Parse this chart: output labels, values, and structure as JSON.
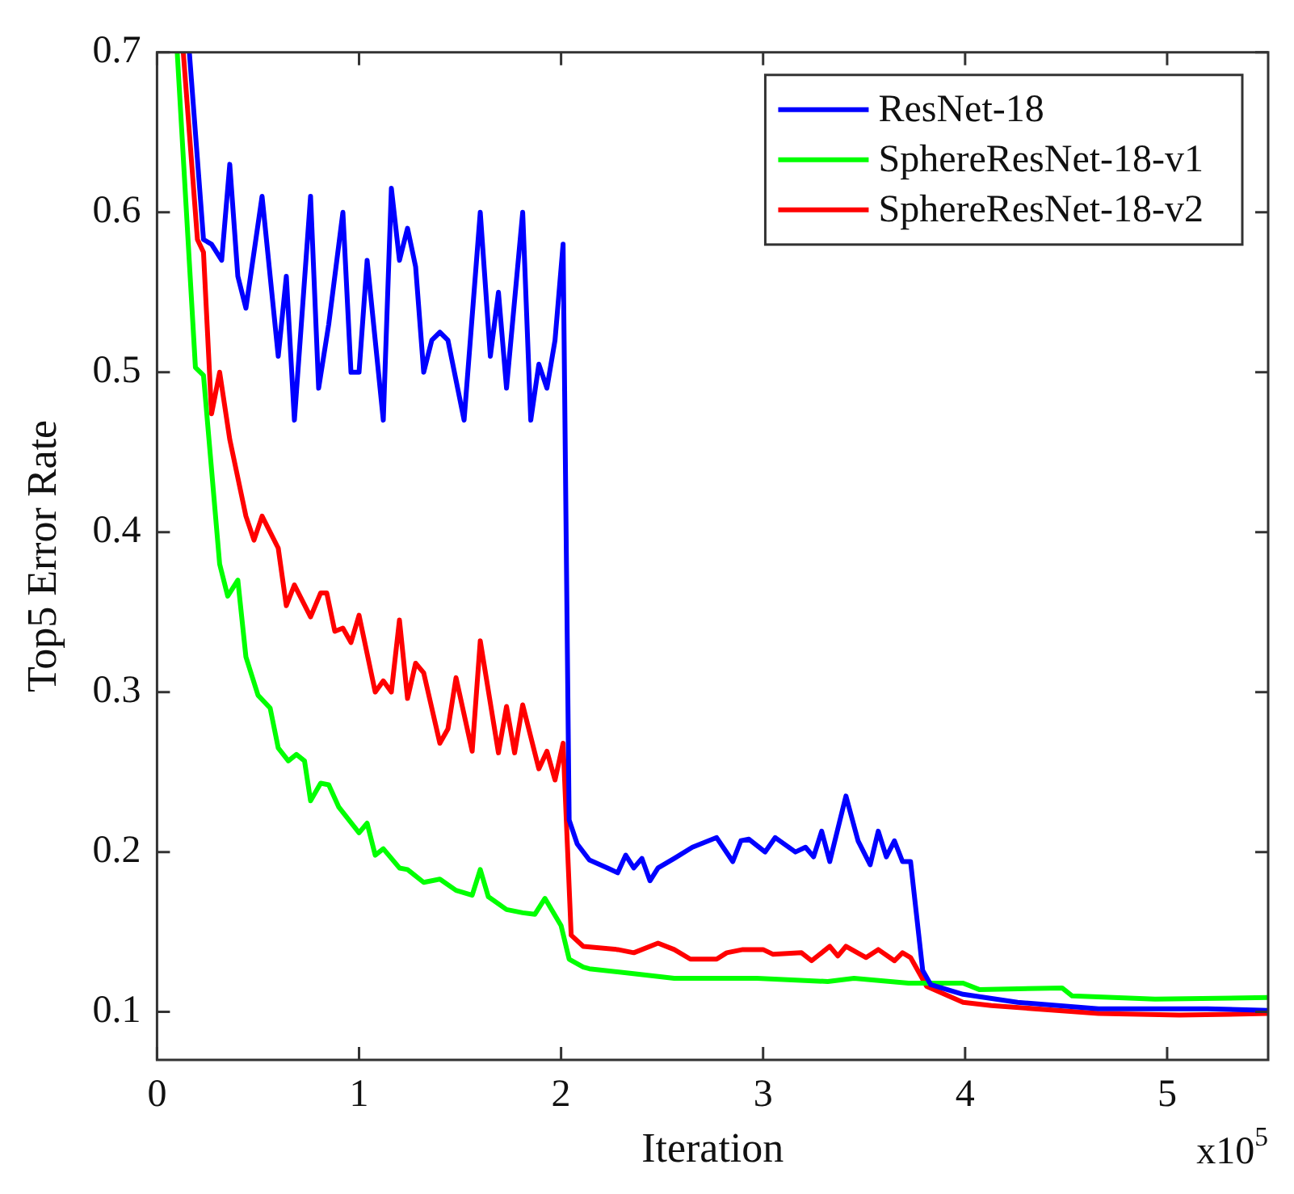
{
  "chart_data": {
    "type": "line",
    "xlabel": "Iteration",
    "ylabel": "Top5 Error Rate",
    "annotations": [
      "x10$^{5}$"
    ],
    "xlim": [
      0,
      5.5
    ],
    "xticks": [
      0,
      1,
      2,
      3,
      4,
      5
    ],
    "ylim": [
      0.07,
      0.7
    ],
    "yticks": [
      0.1,
      0.2,
      0.3,
      0.4,
      0.5,
      0.6,
      0.7
    ],
    "legend": "top right",
    "marker": "none",
    "line_style": "solid",
    "series": [
      {
        "name": "ResNet-18",
        "color": "#0000ff",
        "x": [
          0.16,
          0.23,
          0.27,
          0.32,
          0.36,
          0.4,
          0.44,
          0.52,
          0.6,
          0.64,
          0.68,
          0.76,
          0.8,
          0.85,
          0.92,
          0.96,
          1.0,
          1.04,
          1.12,
          1.16,
          1.2,
          1.24,
          1.28,
          1.32,
          1.36,
          1.4,
          1.44,
          1.52,
          1.6,
          1.65,
          1.69,
          1.73,
          1.81,
          1.85,
          1.89,
          1.93,
          1.97,
          2.01,
          2.04,
          2.08,
          2.14,
          2.23,
          2.28,
          2.32,
          2.36,
          2.4,
          2.44,
          2.48,
          2.56,
          2.65,
          2.77,
          2.85,
          2.89,
          2.93,
          3.01,
          3.06,
          3.16,
          3.21,
          3.25,
          3.29,
          3.33,
          3.41,
          3.47,
          3.53,
          3.57,
          3.61,
          3.65,
          3.69,
          3.73,
          3.79,
          3.83,
          3.99,
          4.26,
          4.66,
          5.2,
          5.5
        ],
        "values": [
          0.7,
          0.583,
          0.58,
          0.57,
          0.63,
          0.56,
          0.54,
          0.61,
          0.51,
          0.56,
          0.47,
          0.61,
          0.49,
          0.53,
          0.6,
          0.5,
          0.5,
          0.57,
          0.47,
          0.615,
          0.57,
          0.59,
          0.566,
          0.5,
          0.52,
          0.525,
          0.52,
          0.47,
          0.6,
          0.51,
          0.55,
          0.49,
          0.6,
          0.47,
          0.505,
          0.49,
          0.52,
          0.58,
          0.22,
          0.205,
          0.195,
          0.19,
          0.187,
          0.198,
          0.19,
          0.196,
          0.182,
          0.19,
          0.196,
          0.203,
          0.209,
          0.194,
          0.207,
          0.208,
          0.2,
          0.209,
          0.2,
          0.203,
          0.197,
          0.213,
          0.194,
          0.235,
          0.207,
          0.192,
          0.213,
          0.197,
          0.207,
          0.194,
          0.194,
          0.126,
          0.117,
          0.111,
          0.106,
          0.102,
          0.102,
          0.101
        ]
      },
      {
        "name": "SphereResNet-18-v1",
        "color": "#00ff00",
        "x": [
          0.1,
          0.19,
          0.23,
          0.31,
          0.35,
          0.4,
          0.44,
          0.5,
          0.56,
          0.6,
          0.65,
          0.69,
          0.73,
          0.76,
          0.81,
          0.85,
          0.9,
          1.0,
          1.04,
          1.08,
          1.12,
          1.2,
          1.24,
          1.32,
          1.4,
          1.48,
          1.56,
          1.6,
          1.64,
          1.73,
          1.81,
          1.87,
          1.92,
          2.0,
          2.04,
          2.11,
          2.14,
          2.35,
          2.56,
          2.97,
          3.32,
          3.45,
          3.72,
          3.99,
          4.07,
          4.48,
          4.53,
          4.94,
          5.5
        ],
        "values": [
          0.7,
          0.503,
          0.498,
          0.38,
          0.36,
          0.37,
          0.322,
          0.298,
          0.29,
          0.265,
          0.257,
          0.261,
          0.257,
          0.232,
          0.243,
          0.242,
          0.228,
          0.212,
          0.218,
          0.198,
          0.202,
          0.19,
          0.189,
          0.181,
          0.183,
          0.176,
          0.173,
          0.189,
          0.172,
          0.164,
          0.162,
          0.161,
          0.171,
          0.154,
          0.133,
          0.128,
          0.127,
          0.124,
          0.121,
          0.121,
          0.119,
          0.121,
          0.118,
          0.118,
          0.114,
          0.115,
          0.11,
          0.108,
          0.109
        ]
      },
      {
        "name": "SphereResNet-18-v2",
        "color": "#ff0000",
        "x": [
          0.13,
          0.2,
          0.23,
          0.27,
          0.31,
          0.36,
          0.44,
          0.48,
          0.52,
          0.6,
          0.64,
          0.68,
          0.76,
          0.81,
          0.84,
          0.88,
          0.92,
          0.96,
          1.0,
          1.08,
          1.12,
          1.16,
          1.2,
          1.24,
          1.28,
          1.32,
          1.4,
          1.44,
          1.48,
          1.56,
          1.6,
          1.69,
          1.73,
          1.77,
          1.81,
          1.89,
          1.93,
          1.97,
          2.01,
          2.05,
          2.11,
          2.28,
          2.36,
          2.48,
          2.56,
          2.64,
          2.77,
          2.82,
          2.9,
          3.0,
          3.05,
          3.19,
          3.24,
          3.33,
          3.37,
          3.41,
          3.51,
          3.57,
          3.65,
          3.69,
          3.73,
          3.81,
          3.99,
          4.13,
          4.66,
          5.06,
          5.5
        ],
        "values": [
          0.7,
          0.583,
          0.575,
          0.474,
          0.5,
          0.458,
          0.41,
          0.395,
          0.41,
          0.39,
          0.354,
          0.367,
          0.347,
          0.362,
          0.362,
          0.338,
          0.34,
          0.331,
          0.348,
          0.3,
          0.307,
          0.3,
          0.345,
          0.296,
          0.318,
          0.312,
          0.268,
          0.277,
          0.309,
          0.263,
          0.332,
          0.262,
          0.291,
          0.262,
          0.292,
          0.252,
          0.263,
          0.245,
          0.268,
          0.148,
          0.141,
          0.139,
          0.137,
          0.143,
          0.139,
          0.133,
          0.133,
          0.137,
          0.139,
          0.139,
          0.136,
          0.137,
          0.132,
          0.141,
          0.135,
          0.141,
          0.134,
          0.139,
          0.132,
          0.137,
          0.134,
          0.116,
          0.106,
          0.104,
          0.099,
          0.098,
          0.099
        ]
      }
    ]
  }
}
